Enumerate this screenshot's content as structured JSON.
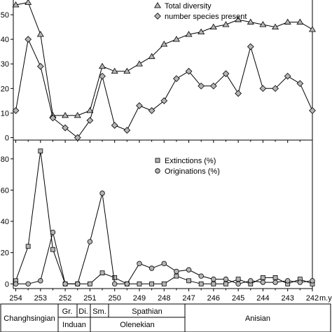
{
  "chart_data": [
    {
      "type": "line",
      "x": [
        254,
        253.5,
        253,
        252.5,
        252,
        251.5,
        251,
        250.5,
        250,
        249.5,
        249,
        248.5,
        248,
        247.5,
        247,
        246.5,
        246,
        245.5,
        245,
        244.5,
        244,
        243.5,
        243,
        242.5,
        242
      ],
      "xlim": [
        254.1,
        242
      ],
      "ylim": [
        -1,
        56
      ],
      "yticks": [
        0,
        10,
        20,
        30,
        40,
        50
      ],
      "grid": false,
      "legend_position": "top-right",
      "series": [
        {
          "name": "Total diversity",
          "marker": "triangle",
          "values": [
            54,
            55,
            42,
            9,
            9,
            9,
            11,
            29,
            27,
            27,
            30,
            33,
            38,
            40,
            42,
            43,
            45,
            46,
            48,
            47,
            46,
            45,
            47,
            47,
            44
          ]
        },
        {
          "name": "number species present",
          "marker": "diamond",
          "values": [
            11,
            40,
            29,
            8,
            4,
            0,
            7,
            25,
            5,
            3,
            13,
            11,
            15,
            24,
            27,
            21,
            21,
            26,
            18,
            37,
            20,
            20,
            25,
            22,
            11
          ]
        }
      ]
    },
    {
      "type": "line",
      "x": [
        254,
        253.5,
        253,
        252.5,
        252,
        251.5,
        251,
        250.5,
        250,
        249.5,
        249,
        248.5,
        248,
        247.5,
        247,
        246.5,
        246,
        245.5,
        245,
        244.5,
        244,
        243.5,
        243,
        242.5,
        242
      ],
      "xlim": [
        254.1,
        242
      ],
      "ylim": [
        -3,
        92
      ],
      "yticks": [
        0,
        20,
        40,
        60,
        80
      ],
      "xticks": [
        254,
        253,
        252,
        251,
        250,
        249,
        248,
        247,
        246,
        245,
        244,
        243,
        242
      ],
      "xtick_labels": [
        "254",
        "253",
        "252",
        "251",
        "250",
        "249",
        "248",
        "247",
        "246",
        "245",
        "244",
        "243",
        "242"
      ],
      "x_unit": "m.y.",
      "grid": false,
      "legend_position": "top-right",
      "series": [
        {
          "name": "Extinctions (%)",
          "marker": "square",
          "values": [
            2,
            24,
            85,
            22,
            0,
            0,
            0,
            7,
            4,
            0,
            0,
            0,
            0,
            5,
            2,
            0,
            0,
            0,
            3,
            0,
            4,
            4,
            0,
            3,
            0
          ]
        },
        {
          "name": "Originations (%)",
          "marker": "circle",
          "values": [
            0,
            0,
            2,
            33,
            0,
            0,
            27,
            58,
            0,
            0,
            13,
            10,
            13,
            8,
            9,
            5,
            3,
            3,
            0,
            2,
            1,
            1,
            2,
            1,
            2
          ]
        }
      ]
    }
  ],
  "stages": {
    "changhsingian": "Changhsingian",
    "griesbachian": "Gr.",
    "dienerian": "Di.",
    "smithian": "Sm.",
    "spathian": "Spathian",
    "anisian": "Anisian",
    "induan": "Induan",
    "olenekian": "Olenekian"
  }
}
